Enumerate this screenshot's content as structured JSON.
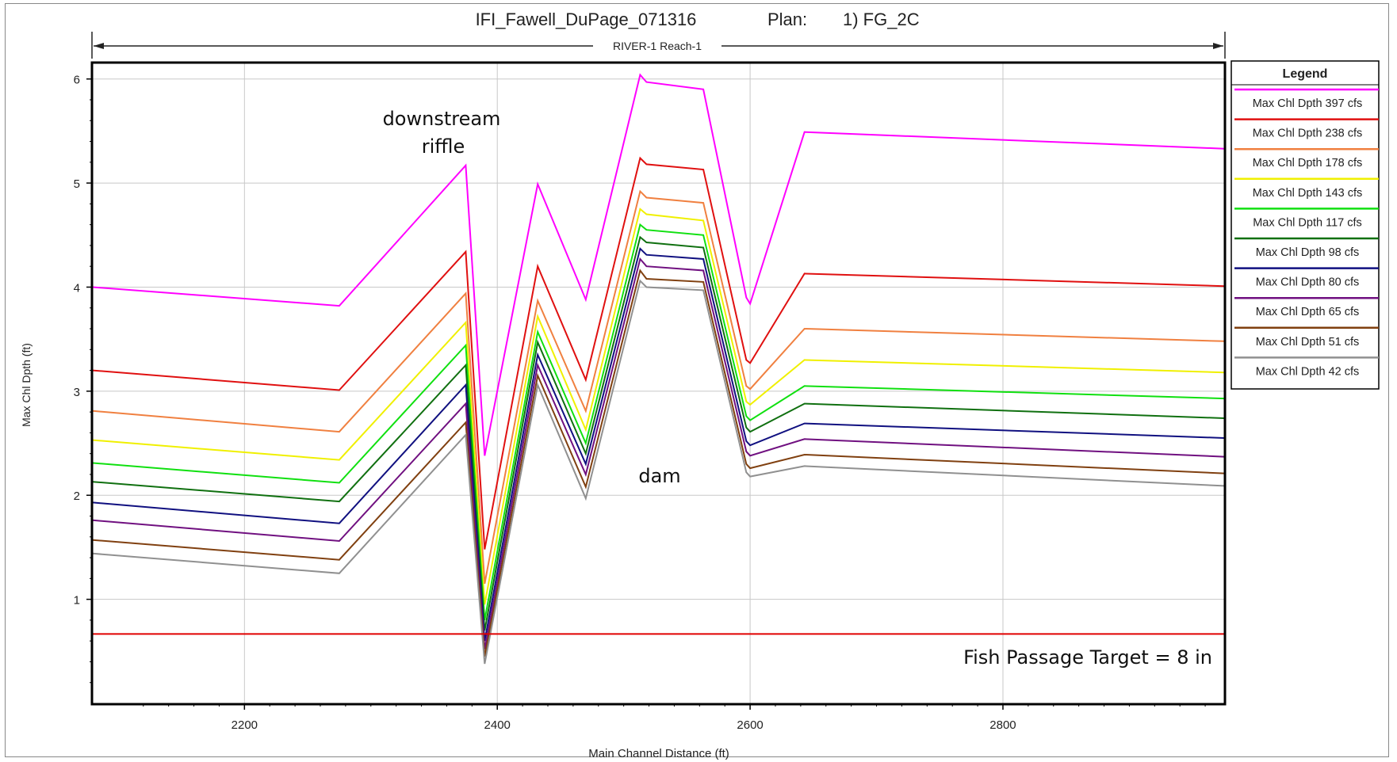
{
  "chart_data": {
    "type": "line",
    "title": "IFI_Fawell_DuPage_071316",
    "plan_label": "Plan:",
    "plan_value": "1) FG_2C",
    "reach_label": "RIVER-1 Reach-1",
    "xlabel": "Main Channel Distance (ft)",
    "ylabel": "Max Chl Dpth (ft)",
    "xlim": [
      2080,
      2975
    ],
    "ylim": [
      0.0,
      6.15
    ],
    "xticks": [
      2200,
      2400,
      2600,
      2800
    ],
    "yticks": [
      1,
      2,
      3,
      4,
      5,
      6
    ],
    "grid": true,
    "legend_title": "Legend",
    "legend_position": "right",
    "x": [
      2080,
      2275,
      2375,
      2390,
      2432,
      2470,
      2513,
      2518,
      2563,
      2597,
      2600,
      2643,
      2975
    ],
    "series": [
      {
        "name": "Max Chl Dpth 397 cfs",
        "color": "#ff00ff",
        "values": [
          4.0,
          3.82,
          5.17,
          2.38,
          4.99,
          3.88,
          6.04,
          5.97,
          5.9,
          3.9,
          3.84,
          5.49,
          5.33
        ]
      },
      {
        "name": "Max Chl Dpth 238 cfs",
        "color": "#e01010",
        "values": [
          3.2,
          3.01,
          4.34,
          1.48,
          4.2,
          3.11,
          5.24,
          5.18,
          5.13,
          3.3,
          3.27,
          4.13,
          4.01
        ]
      },
      {
        "name": "Max Chl Dpth 178 cfs",
        "color": "#f08040",
        "values": [
          2.81,
          2.61,
          3.94,
          1.15,
          3.87,
          2.81,
          4.92,
          4.86,
          4.81,
          3.05,
          3.02,
          3.6,
          3.48
        ]
      },
      {
        "name": "Max Chl Dpth 143 cfs",
        "color": "#f0f000",
        "values": [
          2.53,
          2.34,
          3.66,
          0.95,
          3.72,
          2.63,
          4.75,
          4.7,
          4.64,
          2.9,
          2.87,
          3.3,
          3.18
        ]
      },
      {
        "name": "Max Chl Dpth 117 cfs",
        "color": "#10e010",
        "values": [
          2.31,
          2.12,
          3.44,
          0.8,
          3.57,
          2.5,
          4.6,
          4.55,
          4.5,
          2.76,
          2.72,
          3.05,
          2.93
        ]
      },
      {
        "name": "Max Chl Dpth 98 cfs",
        "color": "#107010",
        "values": [
          2.13,
          1.94,
          3.25,
          0.7,
          3.47,
          2.4,
          4.48,
          4.43,
          4.38,
          2.65,
          2.61,
          2.88,
          2.74
        ]
      },
      {
        "name": "Max Chl Dpth 80 cfs",
        "color": "#101080",
        "values": [
          1.93,
          1.73,
          3.06,
          0.6,
          3.35,
          2.3,
          4.37,
          4.31,
          4.27,
          2.52,
          2.48,
          2.69,
          2.55
        ]
      },
      {
        "name": "Max Chl Dpth 65 cfs",
        "color": "#701080",
        "values": [
          1.76,
          1.56,
          2.88,
          0.52,
          3.25,
          2.2,
          4.27,
          4.2,
          4.16,
          2.42,
          2.38,
          2.54,
          2.37
        ]
      },
      {
        "name": "Max Chl Dpth 51 cfs",
        "color": "#804010",
        "values": [
          1.57,
          1.38,
          2.7,
          0.45,
          3.15,
          2.08,
          4.16,
          4.08,
          4.05,
          2.3,
          2.26,
          2.39,
          2.21
        ]
      },
      {
        "name": "Max Chl Dpth 42 cfs",
        "color": "#909090",
        "values": [
          1.44,
          1.25,
          2.58,
          0.38,
          3.06,
          1.97,
          4.06,
          4.0,
          3.97,
          2.22,
          2.18,
          2.28,
          2.09
        ]
      }
    ],
    "target_line": {
      "value": 0.667,
      "color": "#e00000",
      "label": "Fish Passage Target = 8 in"
    },
    "annotations": [
      {
        "id": "riffle",
        "text": [
          "downstream",
          "riffle"
        ]
      },
      {
        "id": "dam",
        "text": [
          "dam"
        ]
      }
    ]
  }
}
